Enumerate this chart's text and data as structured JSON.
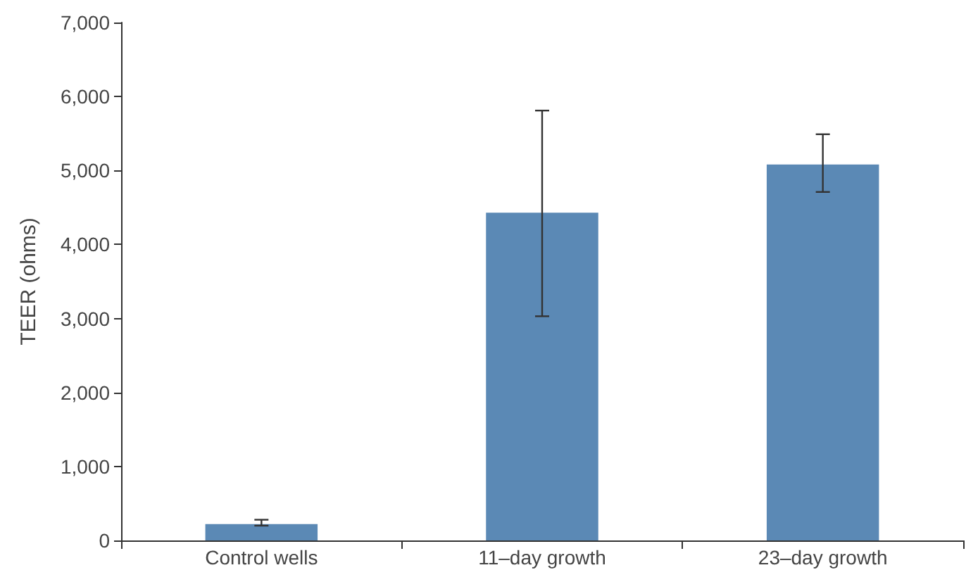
{
  "chart_data": {
    "type": "bar",
    "ylabel": "TEER (ohms)",
    "categories": [
      "Control wells",
      "11–day growth",
      "23–day growth"
    ],
    "values": [
      220,
      4430,
      5080
    ],
    "errors": [
      [
        200,
        280
      ],
      [
        3030,
        5810
      ],
      [
        4710,
        5490
      ]
    ],
    "color": "#5b89b5",
    "ylim": [
      0,
      7000
    ],
    "yticks": [
      {
        "value": 0,
        "label": "0"
      },
      {
        "value": 1000,
        "label": "1,000"
      },
      {
        "value": 2000,
        "label": "2,000"
      },
      {
        "value": 3000,
        "label": "3,000"
      },
      {
        "value": 4000,
        "label": "4,000"
      },
      {
        "value": 5000,
        "label": "5,000"
      },
      {
        "value": 6000,
        "label": "6,000"
      },
      {
        "value": 7000,
        "label": "7,000"
      }
    ],
    "grid": false
  }
}
